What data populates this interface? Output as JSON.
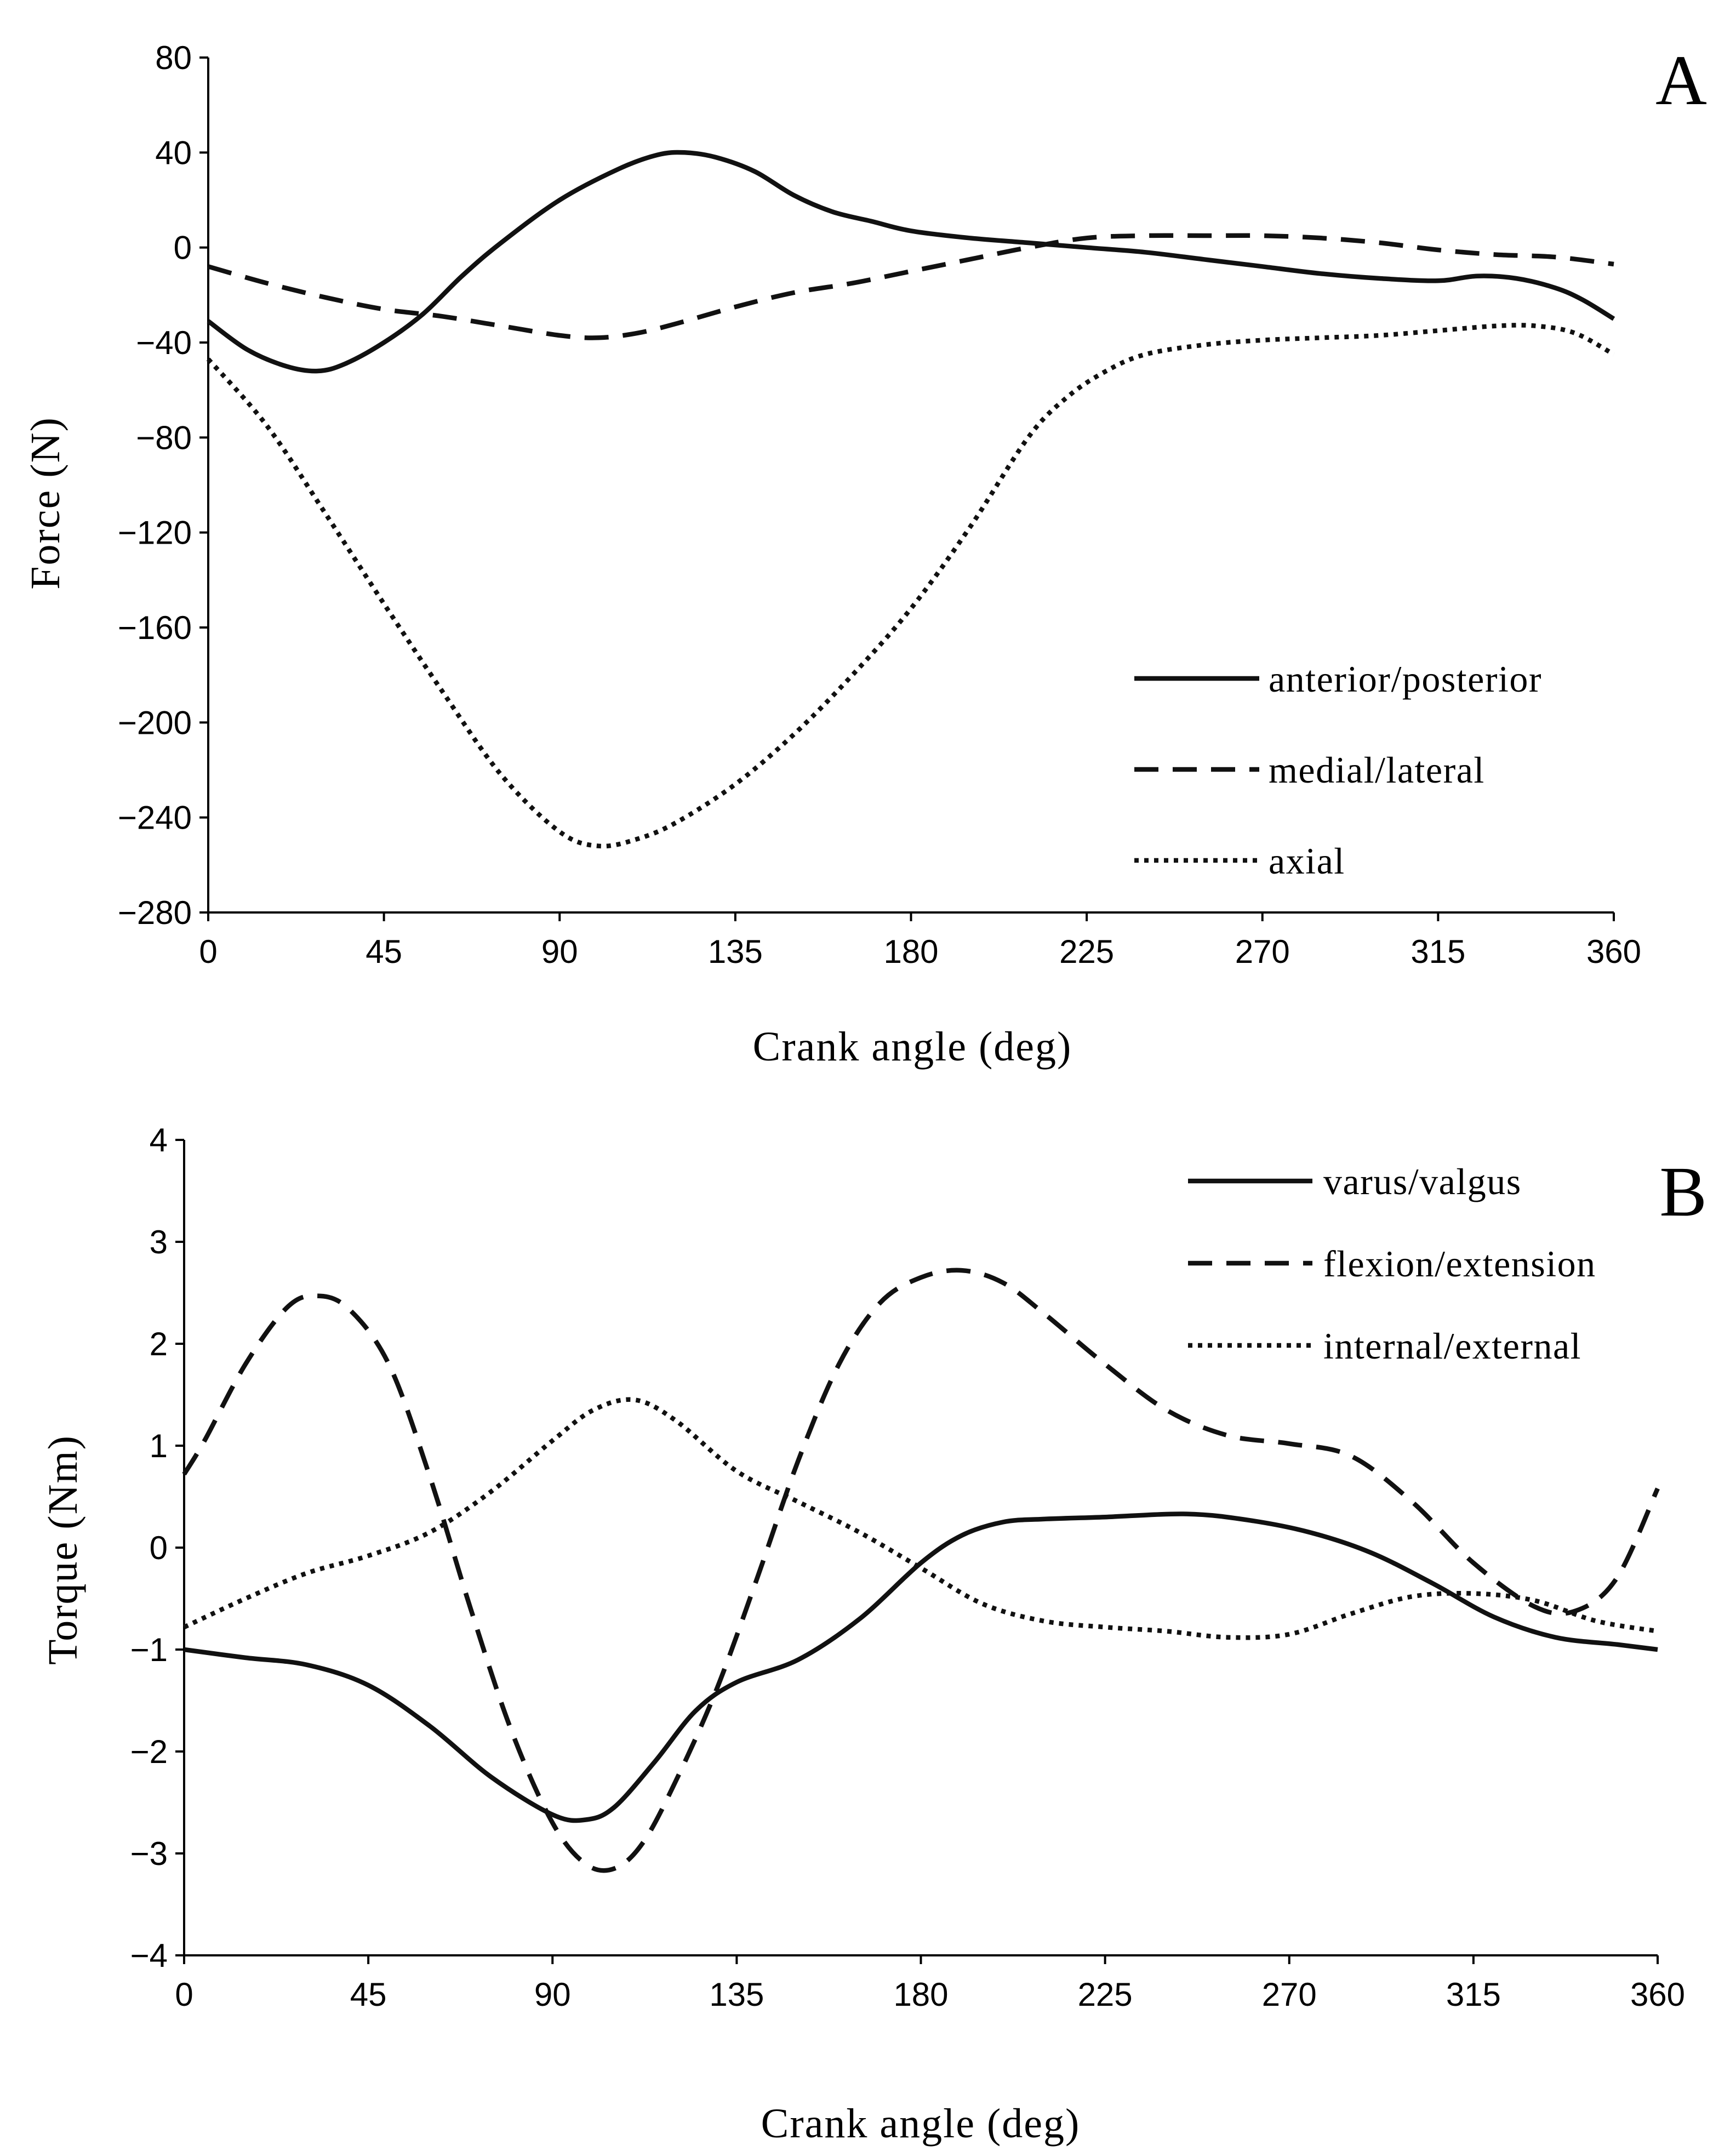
{
  "chart_data": [
    {
      "type": "line",
      "panel_label": "A",
      "xlabel": "Crank angle (deg)",
      "ylabel": "Force (N)",
      "xlim": [
        0,
        360
      ],
      "ylim": [
        -280,
        80
      ],
      "x_ticks": [
        0,
        45,
        90,
        135,
        180,
        225,
        270,
        315,
        360
      ],
      "y_ticks": [
        80,
        40,
        0,
        -40,
        -80,
        -120,
        -160,
        -200,
        -240,
        -280
      ],
      "y_tick_labels": [
        "80",
        "40",
        "0",
        "−40",
        "−80",
        "−120",
        "−160",
        "−200",
        "−240",
        "−280"
      ],
      "legend_position": "bottom-right",
      "series": [
        {
          "name": "anterior/posterior",
          "style": "solid",
          "x": [
            0,
            10,
            20,
            28,
            35,
            45,
            55,
            65,
            75,
            90,
            105,
            115,
            122,
            130,
            140,
            150,
            160,
            170,
            180,
            195,
            210,
            225,
            240,
            255,
            270,
            285,
            300,
            315,
            325,
            335,
            345,
            352,
            360
          ],
          "y": [
            -31,
            -43,
            -50,
            -52,
            -49,
            -40,
            -28,
            -12,
            2,
            20,
            33,
            39,
            40,
            38,
            32,
            22,
            15,
            11,
            7,
            4,
            2,
            0,
            -2,
            -5,
            -8,
            -11,
            -13,
            -14,
            -12,
            -13,
            -17,
            -22,
            -30
          ]
        },
        {
          "name": "medial/lateral",
          "style": "dashed",
          "x": [
            0,
            15,
            30,
            45,
            60,
            75,
            90,
            100,
            110,
            120,
            135,
            150,
            165,
            180,
            195,
            210,
            225,
            240,
            255,
            270,
            285,
            300,
            315,
            330,
            345,
            360
          ],
          "y": [
            -8,
            -15,
            -21,
            -26,
            -29,
            -33,
            -37,
            -38,
            -36,
            -32,
            -25,
            -19,
            -15,
            -10,
            -5,
            0,
            4,
            5,
            5,
            5,
            4,
            2,
            -1,
            -3,
            -4,
            -7
          ]
        },
        {
          "name": "axial",
          "style": "dotted",
          "x": [
            0,
            15,
            30,
            45,
            60,
            75,
            90,
            100,
            110,
            120,
            135,
            150,
            165,
            180,
            195,
            210,
            220,
            230,
            240,
            255,
            270,
            285,
            300,
            315,
            330,
            340,
            350,
            360
          ],
          "y": [
            -47,
            -75,
            -112,
            -150,
            -187,
            -222,
            -246,
            -252,
            -249,
            -242,
            -226,
            -205,
            -180,
            -152,
            -118,
            -80,
            -63,
            -52,
            -45,
            -41,
            -39,
            -38,
            -37,
            -35,
            -33,
            -33,
            -36,
            -45
          ]
        }
      ]
    },
    {
      "type": "line",
      "panel_label": "B",
      "xlabel": "Crank angle (deg)",
      "ylabel": "Torque (Nm)",
      "xlim": [
        0,
        360
      ],
      "ylim": [
        -4,
        4
      ],
      "x_ticks": [
        0,
        45,
        90,
        135,
        180,
        225,
        270,
        315,
        360
      ],
      "y_ticks": [
        4,
        3,
        2,
        1,
        0,
        -1,
        -2,
        -3,
        -4
      ],
      "y_tick_labels": [
        "4",
        "3",
        "2",
        "1",
        "0",
        "−1",
        "−2",
        "−3",
        "−4"
      ],
      "legend_position": "top-right",
      "series": [
        {
          "name": "varus/valgus",
          "style": "solid",
          "x": [
            0,
            15,
            30,
            45,
            60,
            75,
            90,
            98,
            105,
            115,
            125,
            135,
            150,
            165,
            180,
            190,
            200,
            210,
            225,
            245,
            260,
            275,
            290,
            305,
            320,
            335,
            350,
            360
          ],
          "y": [
            -1.0,
            -1.08,
            -1.15,
            -1.35,
            -1.75,
            -2.25,
            -2.62,
            -2.67,
            -2.55,
            -2.1,
            -1.6,
            -1.32,
            -1.1,
            -0.7,
            -0.15,
            0.12,
            0.25,
            0.28,
            0.3,
            0.33,
            0.27,
            0.15,
            -0.05,
            -0.35,
            -0.68,
            -0.88,
            -0.95,
            -1.0
          ]
        },
        {
          "name": "flexion/extension",
          "style": "dashed",
          "x": [
            0,
            5,
            15,
            25,
            32,
            40,
            50,
            60,
            70,
            80,
            90,
            98,
            105,
            112,
            120,
            130,
            140,
            150,
            160,
            170,
            180,
            190,
            200,
            210,
            225,
            240,
            255,
            270,
            285,
            300,
            315,
            330,
            340,
            350,
            360
          ],
          "y": [
            0.72,
            1.05,
            1.8,
            2.35,
            2.47,
            2.35,
            1.8,
            0.7,
            -0.6,
            -1.8,
            -2.7,
            -3.1,
            -3.15,
            -2.9,
            -2.3,
            -1.4,
            -0.3,
            0.85,
            1.8,
            2.4,
            2.65,
            2.72,
            2.6,
            2.3,
            1.8,
            1.35,
            1.1,
            1.02,
            0.9,
            0.45,
            -0.15,
            -0.58,
            -0.62,
            -0.3,
            0.58
          ]
        },
        {
          "name": "internal/external",
          "style": "dotted",
          "x": [
            0,
            15,
            30,
            45,
            60,
            75,
            90,
            100,
            110,
            120,
            135,
            150,
            165,
            180,
            195,
            210,
            225,
            240,
            255,
            270,
            285,
            300,
            315,
            330,
            345,
            360
          ],
          "y": [
            -0.78,
            -0.5,
            -0.25,
            -0.08,
            0.15,
            0.55,
            1.05,
            1.35,
            1.45,
            1.25,
            0.75,
            0.45,
            0.15,
            -0.2,
            -0.55,
            -0.72,
            -0.78,
            -0.82,
            -0.88,
            -0.85,
            -0.65,
            -0.48,
            -0.45,
            -0.52,
            -0.72,
            -0.82
          ]
        }
      ]
    }
  ]
}
